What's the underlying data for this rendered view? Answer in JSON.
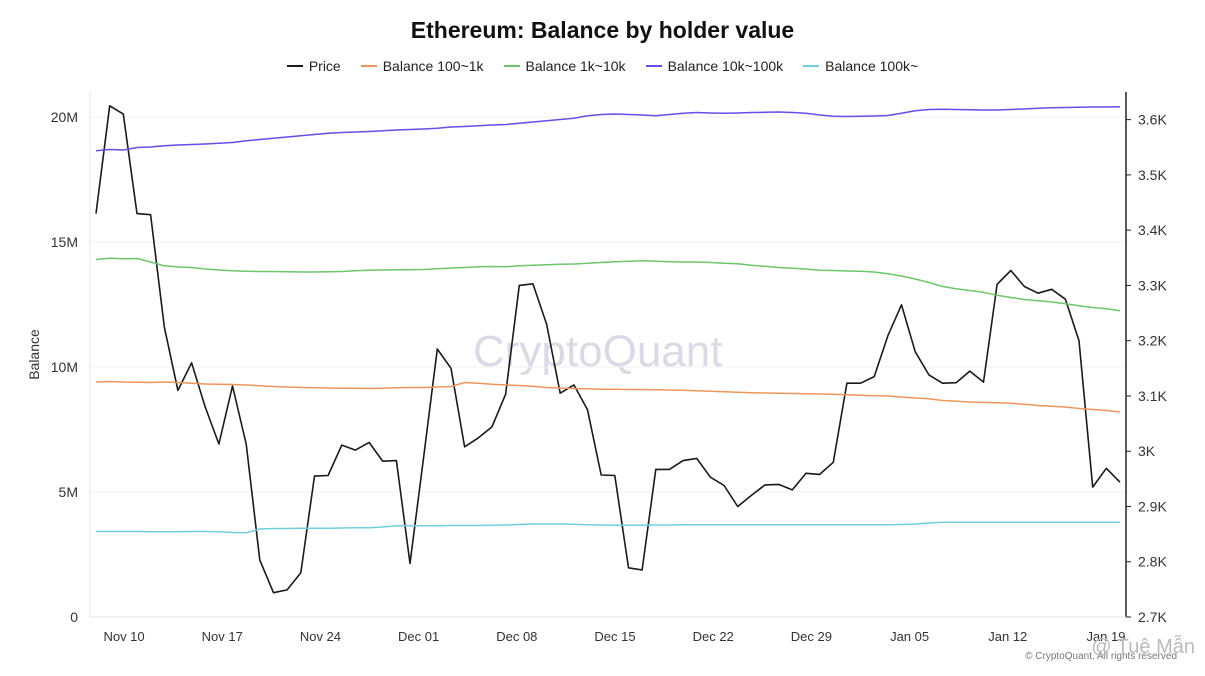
{
  "chart_data": {
    "type": "line",
    "title": "Ethereum: Balance by holder value",
    "ylabel": "Balance",
    "y2label": "",
    "ylim": [
      0,
      21000000
    ],
    "y2lim": [
      2700,
      3650
    ],
    "yticks": [
      0,
      5000000,
      10000000,
      15000000,
      20000000
    ],
    "yticklabels": [
      "0",
      "5M",
      "10M",
      "15M",
      "20M"
    ],
    "y2ticks": [
      2700,
      2800,
      2900,
      3000,
      3100,
      3200,
      3300,
      3400,
      3500,
      3600
    ],
    "y2ticklabels": [
      "2.7K",
      "2.8K",
      "2.9K",
      "3K",
      "3.1K",
      "3.2K",
      "3.3K",
      "3.4K",
      "3.5K",
      "3.6K"
    ],
    "xlim": [
      0,
      73
    ],
    "xticks": [
      2,
      9,
      16,
      23,
      30,
      37,
      44,
      51,
      58,
      65,
      72
    ],
    "xticklabels": [
      "Nov 10",
      "Nov 17",
      "Nov 24",
      "Dec 01",
      "Dec 08",
      "Dec 15",
      "Dec 22",
      "Dec 29",
      "Jan 05",
      "Jan 12",
      "Jan 19"
    ],
    "grid": true,
    "legend_position": "top",
    "series": [
      {
        "name": "Price",
        "axis": "right",
        "color": "#1a1a1a",
        "values": [
          3430,
          3625,
          3610,
          3430,
          3428,
          3225,
          3110,
          3160,
          3080,
          3013,
          3118,
          3013,
          2803,
          2744,
          2749,
          2780,
          2955,
          2956,
          3011,
          3002,
          3016,
          2982,
          2983,
          2797,
          2990,
          3185,
          3150,
          3008,
          3024,
          3044,
          3103,
          3300,
          3303,
          3230,
          3105,
          3120,
          3075,
          2957,
          2956,
          2789,
          2785,
          2967,
          2967,
          2983,
          2987,
          2953,
          2938,
          2900,
          2920,
          2939,
          2940,
          2930,
          2960,
          2958,
          2980,
          3123,
          3123,
          3135,
          3209,
          3265,
          3180,
          3138,
          3123,
          3124,
          3145,
          3125,
          3302,
          3327,
          3298,
          3286,
          3293,
          3275,
          3200,
          2935,
          2969,
          2944
        ]
      },
      {
        "name": "Balance 100~1k",
        "axis": "left",
        "color": "#f0955a",
        "values": [
          9400000,
          9420000,
          9400000,
          9390000,
          9380000,
          9400000,
          9380000,
          9350000,
          9320000,
          9310000,
          9300000,
          9280000,
          9250000,
          9220000,
          9200000,
          9180000,
          9170000,
          9160000,
          9150000,
          9150000,
          9140000,
          9150000,
          9170000,
          9180000,
          9180000,
          9200000,
          9220000,
          9380000,
          9350000,
          9310000,
          9280000,
          9260000,
          9230000,
          9180000,
          9160000,
          9140000,
          9130000,
          9110000,
          9110000,
          9100000,
          9100000,
          9090000,
          9080000,
          9070000,
          9050000,
          9030000,
          9010000,
          8990000,
          8970000,
          8960000,
          8950000,
          8940000,
          8930000,
          8920000,
          8910000,
          8890000,
          8870000,
          8850000,
          8840000,
          8800000,
          8760000,
          8730000,
          8660000,
          8630000,
          8600000,
          8580000,
          8570000,
          8550000,
          8510000,
          8460000,
          8430000,
          8400000,
          8340000,
          8300000,
          8260000,
          8200000
        ]
      },
      {
        "name": "Balance 1k~10k",
        "axis": "left",
        "color": "#6cc76a",
        "values": [
          14300000,
          14350000,
          14330000,
          14340000,
          14200000,
          14050000,
          14000000,
          13980000,
          13920000,
          13880000,
          13850000,
          13830000,
          13820000,
          13820000,
          13810000,
          13800000,
          13800000,
          13810000,
          13820000,
          13850000,
          13870000,
          13880000,
          13890000,
          13890000,
          13900000,
          13930000,
          13960000,
          13980000,
          14010000,
          14020000,
          14010000,
          14050000,
          14070000,
          14090000,
          14110000,
          14120000,
          14150000,
          14180000,
          14210000,
          14230000,
          14250000,
          14230000,
          14210000,
          14200000,
          14200000,
          14180000,
          14150000,
          14130000,
          14070000,
          14030000,
          13980000,
          13950000,
          13920000,
          13870000,
          13860000,
          13840000,
          13830000,
          13800000,
          13730000,
          13640000,
          13520000,
          13380000,
          13220000,
          13130000,
          13060000,
          12990000,
          12870000,
          12780000,
          12700000,
          12650000,
          12600000,
          12530000,
          12450000,
          12380000,
          12330000,
          12250000
        ]
      },
      {
        "name": "Balance 10k~100k",
        "axis": "left",
        "color": "#6a4ce8",
        "values": [
          18650000,
          18700000,
          18680000,
          18780000,
          18800000,
          18850000,
          18880000,
          18900000,
          18920000,
          18950000,
          18980000,
          19050000,
          19100000,
          19150000,
          19200000,
          19250000,
          19300000,
          19350000,
          19380000,
          19400000,
          19420000,
          19450000,
          19480000,
          19500000,
          19520000,
          19550000,
          19600000,
          19620000,
          19650000,
          19680000,
          19700000,
          19750000,
          19800000,
          19850000,
          19900000,
          19950000,
          20050000,
          20100000,
          20120000,
          20100000,
          20080000,
          20050000,
          20100000,
          20150000,
          20180000,
          20160000,
          20150000,
          20160000,
          20180000,
          20190000,
          20200000,
          20180000,
          20150000,
          20080000,
          20030000,
          20020000,
          20030000,
          20040000,
          20060000,
          20150000,
          20250000,
          20300000,
          20310000,
          20300000,
          20290000,
          20280000,
          20280000,
          20300000,
          20320000,
          20350000,
          20370000,
          20380000,
          20390000,
          20400000,
          20400000,
          20410000
        ]
      },
      {
        "name": "Balance 100k~",
        "axis": "left",
        "color": "#6fcfdf",
        "values": [
          3420000,
          3420000,
          3420000,
          3420000,
          3410000,
          3410000,
          3410000,
          3420000,
          3420000,
          3410000,
          3380000,
          3370000,
          3520000,
          3540000,
          3540000,
          3550000,
          3550000,
          3550000,
          3560000,
          3570000,
          3570000,
          3600000,
          3650000,
          3650000,
          3650000,
          3650000,
          3660000,
          3660000,
          3660000,
          3670000,
          3680000,
          3700000,
          3720000,
          3720000,
          3720000,
          3710000,
          3690000,
          3680000,
          3670000,
          3670000,
          3670000,
          3680000,
          3680000,
          3690000,
          3690000,
          3690000,
          3690000,
          3690000,
          3690000,
          3690000,
          3690000,
          3690000,
          3690000,
          3690000,
          3690000,
          3690000,
          3690000,
          3690000,
          3690000,
          3700000,
          3720000,
          3760000,
          3790000,
          3790000,
          3790000,
          3790000,
          3790000,
          3790000,
          3790000,
          3790000,
          3790000,
          3790000,
          3790000,
          3790000,
          3790000,
          3790000
        ]
      }
    ]
  },
  "watermark": "CryptoQuant",
  "footer": "© CryptoQuant. All rights reserved",
  "overlay_text": "@ Tuệ Mẫn"
}
